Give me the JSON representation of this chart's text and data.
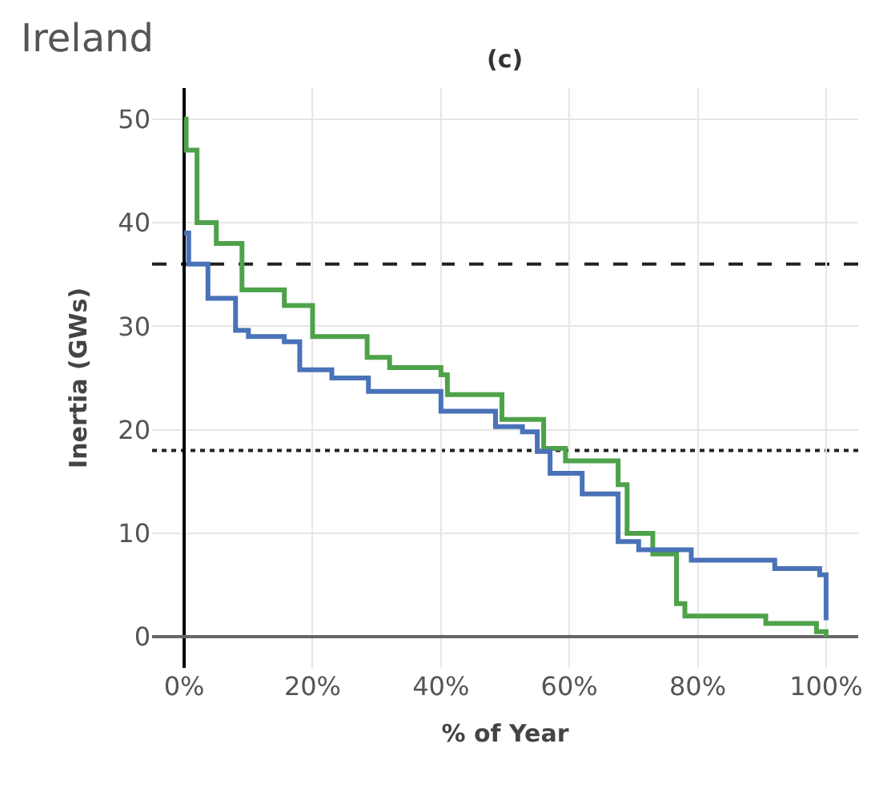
{
  "chart_data": {
    "type": "step",
    "title": "Ireland",
    "subtitle": "(c)",
    "xlabel": "% of Year",
    "ylabel": "Inertia (GWs)",
    "series": [
      {
        "color": "#4ea24a",
        "x": [
          0,
          0.3,
          2,
          5,
          9,
          15.6,
          20,
          28.5,
          32,
          40,
          41,
          49.5,
          56,
          59.4,
          67.6,
          69,
          73,
          76.7,
          78,
          90.6,
          98.5,
          100
        ],
        "values": [
          50,
          47,
          40,
          38,
          33.5,
          32,
          29,
          27,
          26,
          25.3,
          23.4,
          21,
          18.2,
          17,
          14.7,
          10,
          8,
          3.2,
          2,
          1.3,
          0.5,
          0
        ]
      },
      {
        "color": "#4a72b8",
        "x": [
          0,
          0.7,
          3.7,
          8,
          10,
          15.6,
          18,
          23,
          28.7,
          40,
          48.5,
          52.7,
          55,
          57,
          62,
          67.6,
          70.8,
          79,
          92,
          99,
          100
        ],
        "values": [
          39,
          36,
          32.7,
          29.6,
          29,
          28.5,
          25.8,
          25,
          23.7,
          21.8,
          20.3,
          19.8,
          17.9,
          15.8,
          13.8,
          9.2,
          8.4,
          7.4,
          6.6,
          6,
          1.6
        ]
      }
    ],
    "xlim": [
      -5,
      105
    ],
    "ylim": [
      -3,
      53
    ],
    "xticks": [
      {
        "value": 0,
        "label": "0%"
      },
      {
        "value": 20,
        "label": "20%"
      },
      {
        "value": 40,
        "label": "40%"
      },
      {
        "value": 60,
        "label": "60%"
      },
      {
        "value": 80,
        "label": "80%"
      },
      {
        "value": 100,
        "label": "100%"
      }
    ],
    "yticks": [
      0,
      10,
      20,
      30,
      40,
      50
    ],
    "ref_lines": [
      {
        "axis": "y",
        "value": 36,
        "color": "#222222",
        "line_style": "dashed"
      },
      {
        "axis": "y",
        "value": 18,
        "color": "#222222",
        "line_style": "dotted"
      }
    ],
    "grid": true,
    "legend": false,
    "line_style": "solid",
    "marker": "none"
  }
}
